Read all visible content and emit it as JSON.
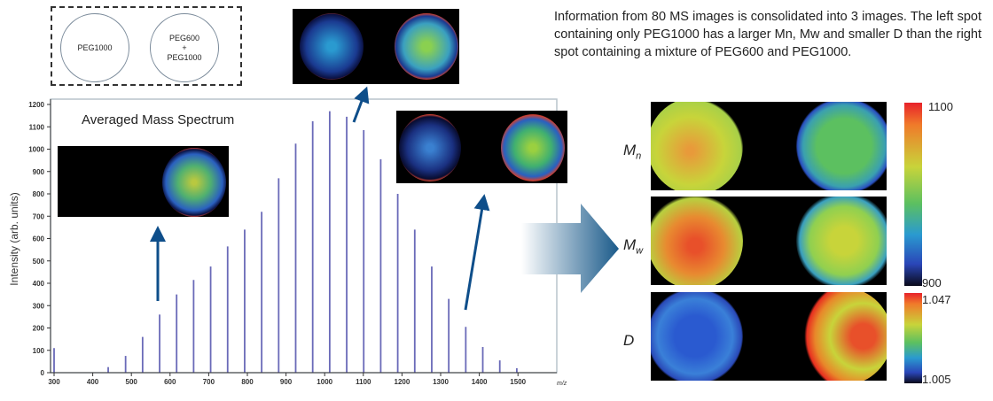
{
  "legend_spots": {
    "left": "PEG1000",
    "right_line1": "PEG600",
    "right_plus": "+",
    "right_line2": "PEG1000"
  },
  "description": "Information from 80 MS images is consolidated into 3 images. The left spot containing only PEG1000 has a larger Mn, Mw and smaller D than the right spot containing a mixture of PEG600 and PEG1000.",
  "maps": {
    "rows": [
      {
        "label": "M",
        "sub": "n"
      },
      {
        "label": "M",
        "sub": "w"
      },
      {
        "label": "D",
        "sub": ""
      }
    ],
    "colorbar_m": {
      "max": "1100",
      "min": "900"
    },
    "colorbar_d": {
      "max": "1.047",
      "min": "1.005"
    },
    "colors": {
      "high": "#e8222a",
      "mid": "#c8d43a",
      "low": "#2a46b8"
    }
  },
  "chart_data": {
    "type": "bar",
    "title": "Averaged Mass Spectrum",
    "xlabel": "m/z",
    "ylabel": "Intensity (arb. units)",
    "xlim": [
      300,
      1560
    ],
    "ylim": [
      0,
      1200
    ],
    "xticks": [
      300,
      400,
      500,
      600,
      700,
      800,
      900,
      1000,
      1100,
      1200,
      1300,
      1400,
      1500
    ],
    "yticks": [
      0,
      100,
      200,
      300,
      400,
      500,
      600,
      700,
      800,
      900,
      1000,
      1100,
      1200
    ],
    "bar_color": "#6a6ab8",
    "x": [
      300,
      440,
      485,
      529,
      573,
      617,
      661,
      705,
      749,
      793,
      837,
      881,
      925,
      969,
      1013,
      1057,
      1101,
      1145,
      1189,
      1233,
      1277,
      1321,
      1365,
      1409,
      1453,
      1497
    ],
    "values": [
      110,
      25,
      75,
      160,
      260,
      350,
      415,
      475,
      565,
      640,
      720,
      870,
      1025,
      1125,
      1170,
      1145,
      1085,
      955,
      800,
      640,
      475,
      330,
      205,
      115,
      55,
      20
    ]
  }
}
